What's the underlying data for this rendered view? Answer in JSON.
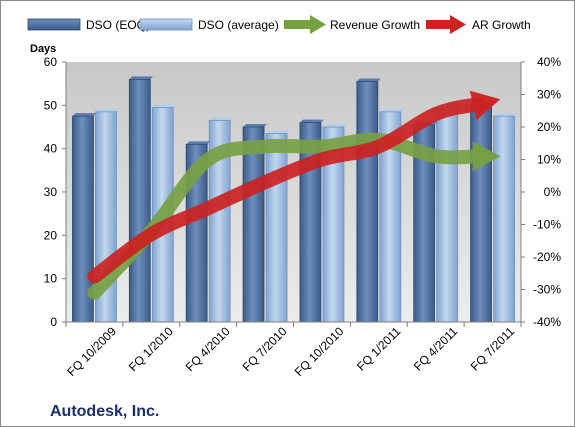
{
  "chart_data": {
    "type": "bar",
    "title": "",
    "company": "Autodesk, Inc.",
    "ylabel": "Days",
    "xlabel": "",
    "categories": [
      "FQ 10/2009",
      "FQ 1/2010",
      "FQ 4/2010",
      "FQ 7/2010",
      "FQ 10/2010",
      "FQ 1/2011",
      "FQ 4/2011",
      "FQ 7/2011"
    ],
    "ylim": [
      0,
      60
    ],
    "yticks": [
      "0",
      "10",
      "20",
      "30",
      "40",
      "50",
      "60"
    ],
    "y2lim": [
      -40,
      40
    ],
    "y2ticks": [
      "-40%",
      "-30%",
      "-20%",
      "-10%",
      "0%",
      "10%",
      "20%",
      "30%",
      "40%"
    ],
    "series": [
      {
        "name": "DSO (EOQ)",
        "kind": "bar",
        "color": "#4f6f9f",
        "values": [
          47.5,
          56,
          41,
          45,
          46,
          55.5,
          45.5,
          50
        ]
      },
      {
        "name": "DSO (average)",
        "kind": "bar",
        "color": "#9cbde2",
        "values": [
          48.5,
          49.5,
          46.5,
          43.5,
          45,
          48.5,
          49.5,
          47.5
        ]
      },
      {
        "name": "Revenue Growth",
        "kind": "arrow",
        "axis": "right",
        "color": "#77a043",
        "values": [
          -31,
          -12,
          10,
          14,
          14,
          16,
          11,
          11
        ]
      },
      {
        "name": "AR Growth",
        "kind": "arrow",
        "axis": "right",
        "color": "#cc2222",
        "values": [
          -26,
          -13,
          -5,
          3,
          10,
          14,
          24,
          28
        ]
      }
    ],
    "grid": false,
    "legend_position": "top"
  }
}
